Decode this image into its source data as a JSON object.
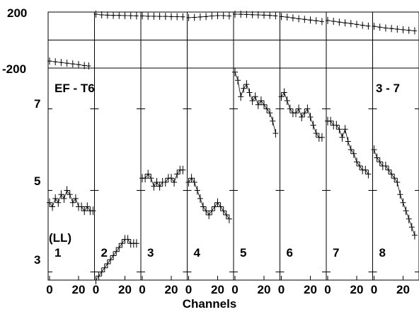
{
  "chart_data": {
    "type": "scatter",
    "description_panels": "8 spectral panels sharing axes; top strip shows phase, bottom shows amplitude",
    "xlabel": "Channels",
    "x_ticks": [
      0,
      20
    ],
    "phase_strip": {
      "yticks": [
        "200",
        "-200"
      ],
      "ylim": [
        -200,
        200
      ]
    },
    "amp_strip": {
      "yticks": [
        "7",
        "5",
        "3"
      ],
      "ylim": [
        2.8,
        8.0
      ]
    },
    "annotations": {
      "top_left": "EF - T6",
      "top_right": "3 - 7",
      "polarization": "(LL)"
    },
    "panels": [
      {
        "label": "1",
        "phase": [
          [
            0,
            -150
          ],
          [
            4,
            -155
          ],
          [
            8,
            -160
          ],
          [
            12,
            -165
          ],
          [
            16,
            -170
          ],
          [
            20,
            -175
          ],
          [
            24,
            -182
          ],
          [
            27,
            -185
          ]
        ],
        "amp": [
          [
            0,
            4.7
          ],
          [
            2,
            4.6
          ],
          [
            4,
            4.8
          ],
          [
            6,
            4.7
          ],
          [
            8,
            4.9
          ],
          [
            10,
            4.8
          ],
          [
            12,
            5.0
          ],
          [
            14,
            4.9
          ],
          [
            16,
            4.7
          ],
          [
            18,
            4.8
          ],
          [
            20,
            4.6
          ],
          [
            22,
            4.6
          ],
          [
            24,
            4.5
          ],
          [
            26,
            4.6
          ],
          [
            28,
            4.5
          ],
          [
            30,
            4.5
          ]
        ]
      },
      {
        "label": "2",
        "phase": [
          [
            0,
            185
          ],
          [
            4,
            180
          ],
          [
            8,
            178
          ],
          [
            12,
            176
          ],
          [
            16,
            176
          ],
          [
            20,
            175
          ],
          [
            24,
            174
          ],
          [
            28,
            173
          ]
        ],
        "amp": [
          [
            0,
            2.8
          ],
          [
            2,
            2.9
          ],
          [
            4,
            3.0
          ],
          [
            6,
            3.1
          ],
          [
            8,
            3.2
          ],
          [
            10,
            3.3
          ],
          [
            12,
            3.4
          ],
          [
            14,
            3.5
          ],
          [
            16,
            3.6
          ],
          [
            18,
            3.7
          ],
          [
            20,
            3.8
          ],
          [
            22,
            3.8
          ],
          [
            24,
            3.7
          ],
          [
            26,
            3.7
          ],
          [
            28,
            3.7
          ]
        ]
      },
      {
        "label": "3",
        "phase": [
          [
            0,
            172
          ],
          [
            4,
            170
          ],
          [
            8,
            170
          ],
          [
            12,
            169
          ],
          [
            16,
            169
          ],
          [
            20,
            168
          ],
          [
            24,
            167
          ],
          [
            28,
            166
          ]
        ],
        "amp": [
          [
            0,
            5.3
          ],
          [
            2,
            5.3
          ],
          [
            4,
            5.4
          ],
          [
            6,
            5.3
          ],
          [
            8,
            5.1
          ],
          [
            10,
            5.2
          ],
          [
            12,
            5.1
          ],
          [
            14,
            5.2
          ],
          [
            16,
            5.2
          ],
          [
            18,
            5.3
          ],
          [
            20,
            5.3
          ],
          [
            22,
            5.2
          ],
          [
            24,
            5.4
          ],
          [
            26,
            5.5
          ],
          [
            28,
            5.5
          ]
        ]
      },
      {
        "label": "4",
        "phase": [
          [
            0,
            160
          ],
          [
            4,
            162
          ],
          [
            8,
            165
          ],
          [
            12,
            168
          ],
          [
            16,
            172
          ],
          [
            20,
            175
          ],
          [
            24,
            175
          ],
          [
            28,
            172
          ]
        ],
        "amp": [
          [
            0,
            5.2
          ],
          [
            2,
            5.3
          ],
          [
            4,
            5.2
          ],
          [
            6,
            5.0
          ],
          [
            8,
            4.8
          ],
          [
            10,
            4.6
          ],
          [
            12,
            4.5
          ],
          [
            14,
            4.4
          ],
          [
            16,
            4.5
          ],
          [
            18,
            4.6
          ],
          [
            20,
            4.7
          ],
          [
            22,
            4.6
          ],
          [
            24,
            4.5
          ],
          [
            26,
            4.4
          ],
          [
            28,
            4.3
          ]
        ]
      },
      {
        "label": "5",
        "phase": [
          [
            0,
            185
          ],
          [
            4,
            184
          ],
          [
            8,
            183
          ],
          [
            12,
            181
          ],
          [
            16,
            180
          ],
          [
            20,
            178
          ],
          [
            24,
            176
          ],
          [
            28,
            173
          ]
        ],
        "amp": [
          [
            0,
            7.9
          ],
          [
            2,
            7.7
          ],
          [
            4,
            7.3
          ],
          [
            6,
            7.5
          ],
          [
            8,
            7.6
          ],
          [
            10,
            7.4
          ],
          [
            12,
            7.2
          ],
          [
            14,
            7.3
          ],
          [
            16,
            7.1
          ],
          [
            18,
            7.2
          ],
          [
            20,
            7.1
          ],
          [
            22,
            7.0
          ],
          [
            24,
            6.9
          ],
          [
            26,
            6.7
          ],
          [
            28,
            6.4
          ]
        ]
      },
      {
        "label": "6",
        "phase": [
          [
            0,
            168
          ],
          [
            4,
            164
          ],
          [
            8,
            158
          ],
          [
            12,
            152
          ],
          [
            16,
            148
          ],
          [
            20,
            143
          ],
          [
            24,
            138
          ],
          [
            28,
            132
          ]
        ],
        "amp": [
          [
            0,
            7.3
          ],
          [
            2,
            7.4
          ],
          [
            4,
            7.2
          ],
          [
            6,
            7.0
          ],
          [
            8,
            6.9
          ],
          [
            10,
            6.9
          ],
          [
            12,
            7.0
          ],
          [
            14,
            6.8
          ],
          [
            16,
            6.9
          ],
          [
            18,
            7.0
          ],
          [
            20,
            6.8
          ],
          [
            22,
            6.6
          ],
          [
            24,
            6.4
          ],
          [
            26,
            6.3
          ],
          [
            28,
            6.3
          ]
        ]
      },
      {
        "label": "7",
        "phase": [
          [
            0,
            140
          ],
          [
            4,
            134
          ],
          [
            8,
            128
          ],
          [
            12,
            123
          ],
          [
            16,
            118
          ],
          [
            20,
            112
          ],
          [
            24,
            106
          ],
          [
            28,
            100
          ]
        ],
        "amp": [
          [
            0,
            6.7
          ],
          [
            2,
            6.7
          ],
          [
            4,
            6.6
          ],
          [
            6,
            6.6
          ],
          [
            8,
            6.5
          ],
          [
            10,
            6.3
          ],
          [
            12,
            6.5
          ],
          [
            14,
            6.2
          ],
          [
            16,
            6.0
          ],
          [
            18,
            5.9
          ],
          [
            20,
            5.7
          ],
          [
            22,
            5.6
          ],
          [
            24,
            5.5
          ],
          [
            26,
            5.5
          ],
          [
            28,
            5.4
          ]
        ]
      },
      {
        "label": "8",
        "phase": [
          [
            0,
            98
          ],
          [
            4,
            92
          ],
          [
            8,
            86
          ],
          [
            12,
            82
          ],
          [
            16,
            78
          ],
          [
            20,
            74
          ],
          [
            24,
            70
          ],
          [
            28,
            66
          ]
        ],
        "amp": [
          [
            0,
            6.0
          ],
          [
            2,
            5.8
          ],
          [
            4,
            5.7
          ],
          [
            6,
            5.6
          ],
          [
            8,
            5.6
          ],
          [
            10,
            5.5
          ],
          [
            12,
            5.4
          ],
          [
            14,
            5.3
          ],
          [
            16,
            5.2
          ],
          [
            18,
            4.9
          ],
          [
            20,
            4.7
          ],
          [
            22,
            4.5
          ],
          [
            24,
            4.3
          ],
          [
            26,
            4.1
          ],
          [
            28,
            3.9
          ]
        ]
      }
    ]
  }
}
